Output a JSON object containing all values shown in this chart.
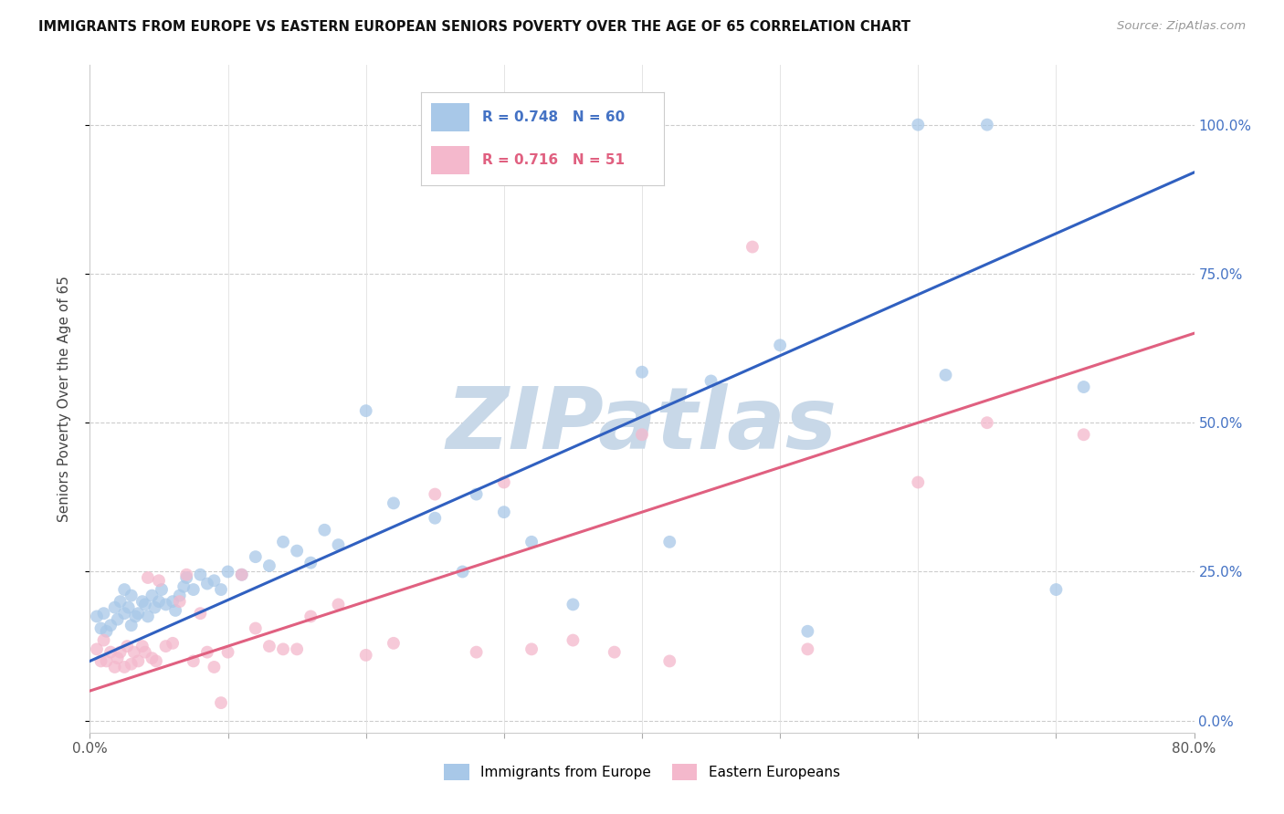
{
  "title": "IMMIGRANTS FROM EUROPE VS EASTERN EUROPEAN SENIORS POVERTY OVER THE AGE OF 65 CORRELATION CHART",
  "source": "Source: ZipAtlas.com",
  "ylabel": "Seniors Poverty Over the Age of 65",
  "xlim": [
    0.0,
    0.8
  ],
  "ylim": [
    -0.02,
    1.1
  ],
  "xtick_vals": [
    0.0,
    0.1,
    0.2,
    0.3,
    0.4,
    0.5,
    0.6,
    0.7,
    0.8
  ],
  "ytick_vals": [
    0.0,
    0.25,
    0.5,
    0.75,
    1.0
  ],
  "ytick_labels": [
    "0.0%",
    "25.0%",
    "50.0%",
    "75.0%",
    "100.0%"
  ],
  "blue_R": "0.748",
  "blue_N": "60",
  "pink_R": "0.716",
  "pink_N": "51",
  "blue_color": "#a8c8e8",
  "pink_color": "#f4b8cc",
  "blue_line_color": "#3060c0",
  "pink_line_color": "#e06080",
  "legend_label_blue": "Immigrants from Europe",
  "legend_label_pink": "Eastern Europeans",
  "watermark": "ZIPatlas",
  "watermark_color": "#c8d8e8",
  "background_color": "#ffffff",
  "grid_color": "#cccccc",
  "blue_x": [
    0.005,
    0.008,
    0.01,
    0.012,
    0.015,
    0.018,
    0.02,
    0.022,
    0.025,
    0.025,
    0.028,
    0.03,
    0.03,
    0.033,
    0.035,
    0.038,
    0.04,
    0.042,
    0.045,
    0.047,
    0.05,
    0.052,
    0.055,
    0.06,
    0.062,
    0.065,
    0.068,
    0.07,
    0.075,
    0.08,
    0.085,
    0.09,
    0.095,
    0.1,
    0.11,
    0.12,
    0.13,
    0.14,
    0.15,
    0.16,
    0.17,
    0.18,
    0.2,
    0.22,
    0.25,
    0.27,
    0.28,
    0.3,
    0.32,
    0.35,
    0.4,
    0.42,
    0.45,
    0.5,
    0.52,
    0.6,
    0.62,
    0.65,
    0.7,
    0.72
  ],
  "blue_y": [
    0.175,
    0.155,
    0.18,
    0.15,
    0.16,
    0.19,
    0.17,
    0.2,
    0.18,
    0.22,
    0.19,
    0.16,
    0.21,
    0.175,
    0.18,
    0.2,
    0.195,
    0.175,
    0.21,
    0.19,
    0.2,
    0.22,
    0.195,
    0.2,
    0.185,
    0.21,
    0.225,
    0.24,
    0.22,
    0.245,
    0.23,
    0.235,
    0.22,
    0.25,
    0.245,
    0.275,
    0.26,
    0.3,
    0.285,
    0.265,
    0.32,
    0.295,
    0.52,
    0.365,
    0.34,
    0.25,
    0.38,
    0.35,
    0.3,
    0.195,
    0.585,
    0.3,
    0.57,
    0.63,
    0.15,
    1.0,
    0.58,
    1.0,
    0.22,
    0.56
  ],
  "pink_x": [
    0.005,
    0.008,
    0.01,
    0.012,
    0.015,
    0.018,
    0.02,
    0.022,
    0.025,
    0.027,
    0.03,
    0.032,
    0.035,
    0.038,
    0.04,
    0.042,
    0.045,
    0.048,
    0.05,
    0.055,
    0.06,
    0.065,
    0.07,
    0.075,
    0.08,
    0.085,
    0.09,
    0.095,
    0.1,
    0.11,
    0.12,
    0.13,
    0.14,
    0.15,
    0.16,
    0.18,
    0.2,
    0.22,
    0.25,
    0.28,
    0.3,
    0.32,
    0.35,
    0.38,
    0.4,
    0.42,
    0.48,
    0.52,
    0.6,
    0.65,
    0.72
  ],
  "pink_y": [
    0.12,
    0.1,
    0.135,
    0.1,
    0.115,
    0.09,
    0.105,
    0.115,
    0.09,
    0.125,
    0.095,
    0.115,
    0.1,
    0.125,
    0.115,
    0.24,
    0.105,
    0.1,
    0.235,
    0.125,
    0.13,
    0.2,
    0.245,
    0.1,
    0.18,
    0.115,
    0.09,
    0.03,
    0.115,
    0.245,
    0.155,
    0.125,
    0.12,
    0.12,
    0.175,
    0.195,
    0.11,
    0.13,
    0.38,
    0.115,
    0.4,
    0.12,
    0.135,
    0.115,
    0.48,
    0.1,
    0.795,
    0.12,
    0.4,
    0.5,
    0.48
  ],
  "blue_trend_x0": 0.0,
  "blue_trend_y0": 0.1,
  "blue_trend_x1": 0.8,
  "blue_trend_y1": 0.92,
  "pink_trend_x0": 0.0,
  "pink_trend_y0": 0.05,
  "pink_trend_x1": 0.8,
  "pink_trend_y1": 0.65
}
